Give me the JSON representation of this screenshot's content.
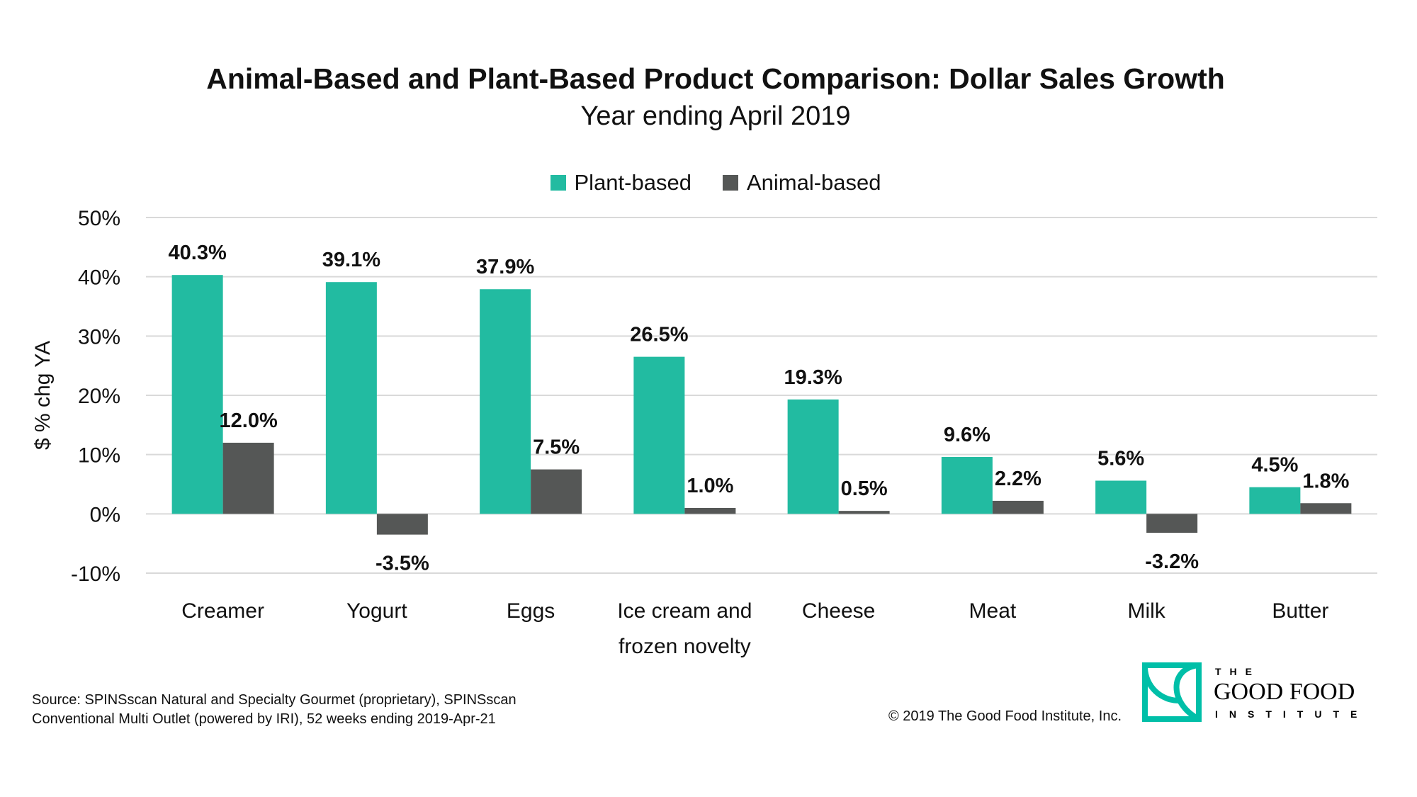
{
  "chart_data": {
    "type": "bar",
    "title": "Animal-Based and Plant-Based Product Comparison: Dollar Sales Growth",
    "subtitle": "Year ending April 2019",
    "ylabel": "$ % chg YA",
    "xlabel": "",
    "ylim": [
      -10,
      50
    ],
    "yticks": [
      "-10%",
      "0%",
      "10%",
      "20%",
      "30%",
      "40%",
      "50%"
    ],
    "ytick_values": [
      -10,
      0,
      10,
      20,
      30,
      40,
      50
    ],
    "grid": true,
    "legend_position": "top-center",
    "categories": [
      [
        "Creamer"
      ],
      [
        "Yogurt"
      ],
      [
        "Eggs"
      ],
      [
        "Ice cream and",
        "frozen novelty"
      ],
      [
        "Cheese"
      ],
      [
        "Meat"
      ],
      [
        "Milk"
      ],
      [
        "Butter"
      ]
    ],
    "series": [
      {
        "name": "Plant-based",
        "color": "#22BBA1",
        "values": [
          40.3,
          39.1,
          37.9,
          26.5,
          19.3,
          9.6,
          5.6,
          4.5
        ],
        "labels": [
          "40.3%",
          "39.1%",
          "37.9%",
          "26.5%",
          "19.3%",
          "9.6%",
          "5.6%",
          "4.5%"
        ]
      },
      {
        "name": "Animal-based",
        "color": "#555756",
        "values": [
          12.0,
          -3.5,
          7.5,
          1.0,
          0.5,
          2.2,
          -3.2,
          1.8
        ],
        "labels": [
          "12.0%",
          "-3.5%",
          "7.5%",
          "1.0%",
          "0.5%",
          "2.2%",
          "-3.2%",
          "1.8%"
        ]
      }
    ]
  },
  "footer": {
    "source_line1": "Source: SPINSscan Natural and Specialty Gourmet (proprietary), SPINSscan",
    "source_line2": "Conventional Multi Outlet (powered by IRI), 52 weeks ending 2019-Apr-21",
    "copyright": "© 2019 The Good Food Institute, Inc."
  },
  "logo": {
    "text_top": "THE",
    "text_main": "GOOD FOOD",
    "text_bottom": "INSTITUTE",
    "color": "#00BFA8"
  }
}
